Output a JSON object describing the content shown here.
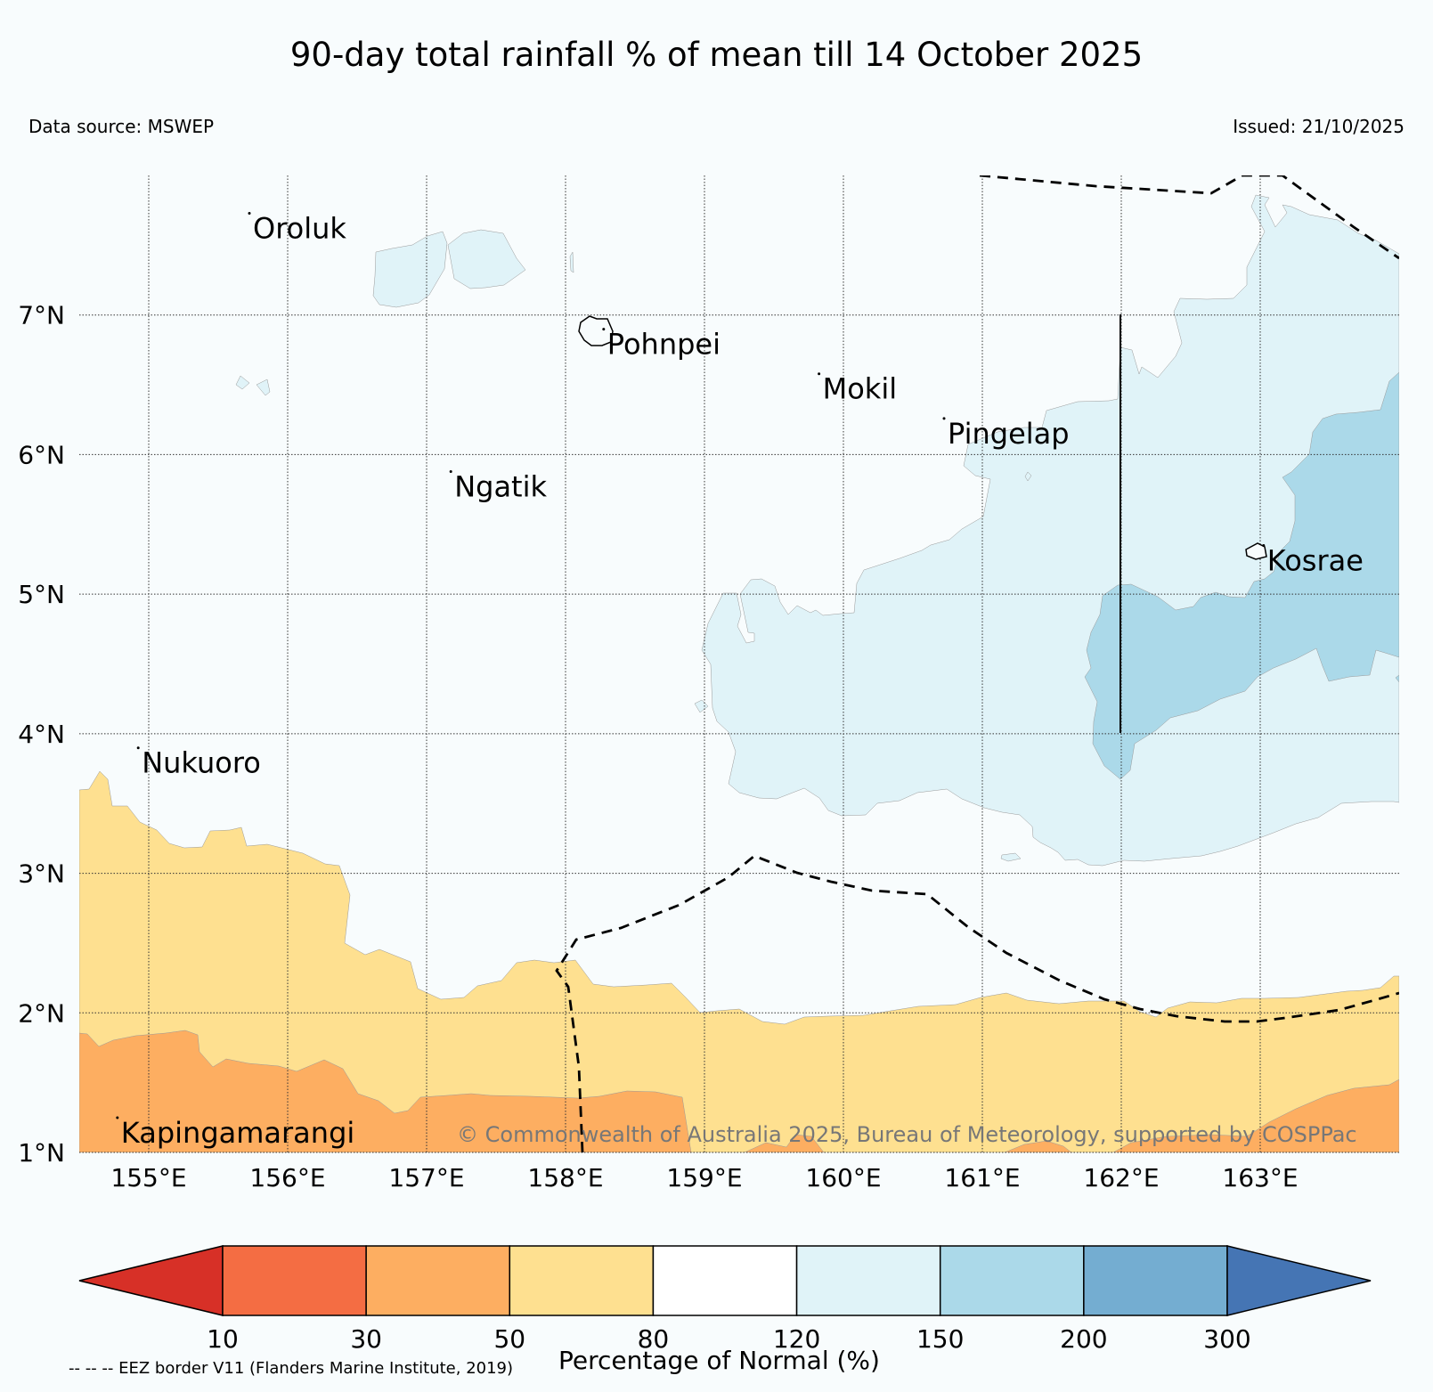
{
  "title": "90-day total rainfall % of mean till 14 October 2025",
  "data_source": "Data source: MSWEP",
  "issued": "Issued: 21/10/2025",
  "copyright": "© Commonwealth of Australia 2025, Bureau of Meteorology, supported by COSPPac",
  "footnote": "-- -- -- EEZ border V11 (Flanders Marine Institute, 2019)",
  "map": {
    "lon_range": [
      154.5,
      164.0
    ],
    "lat_range": [
      1.0,
      8.0
    ],
    "lat_ticks": [
      "1°N",
      "2°N",
      "3°N",
      "4°N",
      "5°N",
      "6°N",
      "7°N"
    ],
    "lon_ticks": [
      "155°E",
      "156°E",
      "157°E",
      "158°E",
      "159°E",
      "160°E",
      "161°E",
      "162°E",
      "163°E"
    ],
    "places": [
      {
        "name": "Oroluk",
        "lon": 155.75,
        "lat": 7.55
      },
      {
        "name": "Pohnpei",
        "lon": 158.3,
        "lat": 6.72
      },
      {
        "name": "Mokil",
        "lon": 159.85,
        "lat": 6.4
      },
      {
        "name": "Pingelap",
        "lon": 160.75,
        "lat": 6.08
      },
      {
        "name": "Ngatik",
        "lon": 157.2,
        "lat": 5.7
      },
      {
        "name": "Kosrae",
        "lon": 163.05,
        "lat": 5.17
      },
      {
        "name": "Nukuoro",
        "lon": 154.95,
        "lat": 3.72
      },
      {
        "name": "Kapingamarangi",
        "lon": 154.8,
        "lat": 1.07
      }
    ]
  },
  "colorbar": {
    "title": "Percentage of Normal (%)",
    "ticks": [
      "10",
      "30",
      "50",
      "80",
      "120",
      "150",
      "200",
      "300"
    ],
    "colors": [
      "#d73027",
      "#f46d43",
      "#fdae61",
      "#fee090",
      "#ffffff",
      "#e0f3f8",
      "#abd9e9",
      "#74add1",
      "#4575b4"
    ]
  }
}
